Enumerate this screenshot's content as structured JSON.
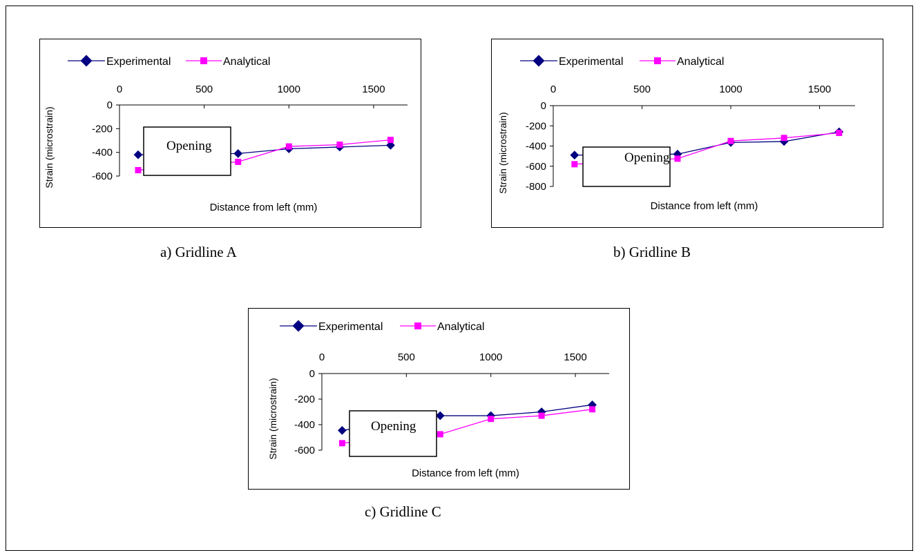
{
  "legend": {
    "experimental": "Experimental",
    "analytical": "Analytical"
  },
  "colors": {
    "experimental": "#000080",
    "analytical": "#FF00FF"
  },
  "opening_label": "Opening",
  "chart_data": [
    {
      "type": "line",
      "caption": "a) Gridline A",
      "xlabel": "Distance from left (mm)",
      "ylabel": "Strain (microstrain)",
      "xlim": [
        0,
        1700
      ],
      "ylim": [
        -600,
        0
      ],
      "x_ticks": [
        0,
        500,
        1000,
        1500
      ],
      "y_ticks": [
        0,
        -200,
        -400,
        -600
      ],
      "legend_position": "top",
      "grid": false,
      "series": [
        {
          "name": "Experimental",
          "x": [
            110,
            700,
            1000,
            1300,
            1600
          ],
          "values": [
            -420,
            -410,
            -370,
            -355,
            -340
          ]
        },
        {
          "name": "Analytical",
          "x": [
            110,
            700,
            1000,
            1300,
            1600
          ],
          "values": [
            -550,
            -480,
            -350,
            -335,
            -295
          ]
        }
      ]
    },
    {
      "type": "line",
      "caption": "b) Gridline B",
      "xlabel": "Distance from left (mm)",
      "ylabel": "Strain (microstrain)",
      "xlim": [
        0,
        1700
      ],
      "ylim": [
        -800,
        0
      ],
      "x_ticks": [
        0,
        500,
        1000,
        1500
      ],
      "y_ticks": [
        0,
        -200,
        -400,
        -600,
        -800
      ],
      "legend_position": "top",
      "grid": false,
      "series": [
        {
          "name": "Experimental",
          "x": [
            120,
            700,
            1000,
            1300,
            1610
          ],
          "values": [
            -490,
            -480,
            -365,
            -355,
            -260
          ]
        },
        {
          "name": "Analytical",
          "x": [
            120,
            700,
            1000,
            1300,
            1610
          ],
          "values": [
            -580,
            -525,
            -350,
            -320,
            -270
          ]
        }
      ]
    },
    {
      "type": "line",
      "caption": "c) Gridline C",
      "xlabel": "Distance from left (mm)",
      "ylabel": "Strain (microstrain)",
      "xlim": [
        0,
        1700
      ],
      "ylim": [
        -600,
        0
      ],
      "x_ticks": [
        0,
        500,
        1000,
        1500
      ],
      "y_ticks": [
        0,
        -200,
        -400,
        -600
      ],
      "legend_position": "top",
      "grid": false,
      "series": [
        {
          "name": "Experimental",
          "x": [
            120,
            700,
            1000,
            1300,
            1600
          ],
          "values": [
            -445,
            -330,
            -330,
            -300,
            -245
          ]
        },
        {
          "name": "Analytical",
          "x": [
            120,
            700,
            1000,
            1300,
            1600
          ],
          "values": [
            -545,
            -475,
            -355,
            -330,
            -280
          ]
        }
      ]
    }
  ]
}
